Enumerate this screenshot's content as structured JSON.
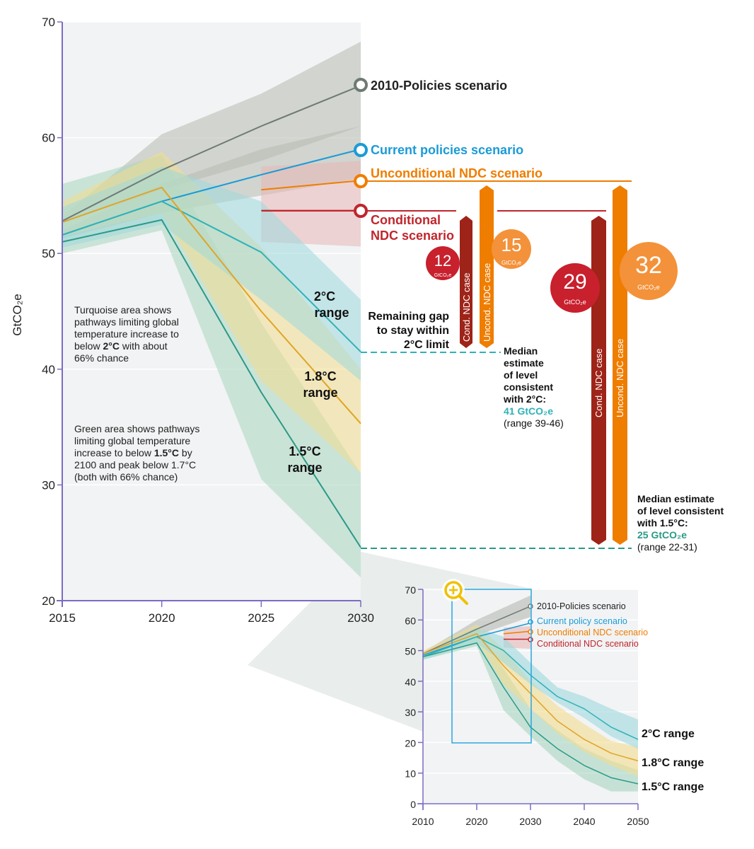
{
  "colors": {
    "policies2010": "#6f7a74",
    "current": "#1a9bd7",
    "uncond": "#ef7d00",
    "cond": "#c0262d",
    "cond_bar": "#9e2318",
    "t20": "#2fb2b8",
    "t18": "#e0a526",
    "t15": "#2a9a86",
    "band20": "#9fd9dc",
    "band18": "#f3dc8e",
    "band15": "#a9d6bf",
    "bandPol": "#b6b9b0",
    "bandCond": "#e8b7b6",
    "plot_bg": "#f1f3f4",
    "zoom_box": "#2aa6dd",
    "zoom_icon": "#f0c000"
  },
  "chart_data": [
    {
      "type": "line",
      "ylabel": "GtCO₂e",
      "xlim": [
        2015,
        2030
      ],
      "ylim": [
        20,
        70
      ],
      "xticks": [
        "2015",
        "2020",
        "2025",
        "2030"
      ],
      "yticks": [
        "20",
        "30",
        "40",
        "50",
        "60",
        "70"
      ],
      "series": [
        {
          "name": "2010-Policies scenario",
          "key": "policies2010",
          "x": [
            2015,
            2020,
            2025,
            2030
          ],
          "y": [
            52.8,
            57.2,
            61.0,
            64.5
          ],
          "band_low": [
            52.6,
            55.5,
            58.0,
            61.0
          ],
          "band_high": [
            53.2,
            60.3,
            63.8,
            68.3
          ],
          "band": "bandPol"
        },
        {
          "name": "Current policies scenario",
          "key": "current",
          "x": [
            2015,
            2020,
            2025,
            2030
          ],
          "y": [
            51.6,
            54.5,
            56.8,
            59.0
          ],
          "band_low": [
            51.3,
            53.5,
            55.0,
            56.5
          ],
          "band_high": [
            52.0,
            56.0,
            59.0,
            61.0
          ],
          "band": "bandPol"
        },
        {
          "name": "Unconditional NDC scenario",
          "key": "uncond",
          "x": [
            2025,
            2030
          ],
          "y": [
            55.5,
            56.3
          ],
          "band_low": [
            51.0,
            50.6
          ],
          "band_high": [
            57.5,
            58.0
          ],
          "band": "bandCond"
        },
        {
          "name": "Conditional NDC scenario",
          "key": "cond",
          "x": [
            2025,
            2030
          ],
          "y": [
            53.7,
            53.7
          ]
        },
        {
          "name": "2°C range",
          "key": "t20",
          "x": [
            2015,
            2020,
            2025,
            2030
          ],
          "y": [
            51.6,
            54.5,
            50.1,
            41.5
          ],
          "band_low": [
            50.5,
            52.5,
            46.0,
            39.0
          ],
          "band_high": [
            54.0,
            57.5,
            54.5,
            46.0
          ],
          "band": "band20"
        },
        {
          "name": "1.8°C range",
          "key": "t18",
          "x": [
            2015,
            2020,
            2025,
            2030
          ],
          "y": [
            52.7,
            55.7,
            45.0,
            35.3
          ],
          "band_low": [
            51.5,
            53.5,
            39.0,
            31.0
          ],
          "band_high": [
            54.5,
            58.8,
            50.5,
            40.0
          ],
          "band": "band18"
        },
        {
          "name": "1.5°C range",
          "key": "t15",
          "x": [
            2015,
            2020,
            2025,
            2030
          ],
          "y": [
            51.0,
            52.9,
            38.0,
            24.6
          ],
          "band_low": [
            50.0,
            52.0,
            30.5,
            22.0
          ],
          "band_high": [
            56.0,
            58.5,
            44.0,
            31.0
          ],
          "band": "band15"
        }
      ],
      "gaps": [
        {
          "target": "2°C",
          "case": "Cond. NDC case",
          "value": 12,
          "unit": "GtCO₂e"
        },
        {
          "target": "2°C",
          "case": "Uncond. NDC case",
          "value": 15,
          "unit": "GtCO₂e"
        },
        {
          "target": "1.5°C",
          "case": "Cond. NDC case",
          "value": 29,
          "unit": "GtCO₂e"
        },
        {
          "target": "1.5°C",
          "case": "Uncond. NDC case",
          "value": 32,
          "unit": "GtCO₂e"
        }
      ],
      "median_2c": 41,
      "median_15c": 25
    },
    {
      "type": "line",
      "title": "inset",
      "xlim": [
        2010,
        2050
      ],
      "ylim": [
        0,
        70
      ],
      "xticks": [
        "2010",
        "2020",
        "2030",
        "2040",
        "2050"
      ],
      "yticks": [
        "0",
        "10",
        "20",
        "30",
        "40",
        "50",
        "60",
        "70"
      ],
      "series": [
        {
          "name": "2010-Policies scenario",
          "key": "policies2010",
          "x": [
            2010,
            2020,
            2030
          ],
          "y": [
            49,
            57,
            64.5
          ],
          "band_low": [
            48.5,
            55,
            61
          ],
          "band_high": [
            49.5,
            60,
            68
          ],
          "band": "bandPol"
        },
        {
          "name": "Current policy scenario",
          "key": "current",
          "x": [
            2010,
            2020,
            2030
          ],
          "y": [
            48.5,
            54.5,
            59
          ]
        },
        {
          "name": "Unconditional NDC scenario",
          "key": "uncond",
          "x": [
            2025,
            2030
          ],
          "y": [
            55.5,
            56.3
          ],
          "band_low": [
            51,
            50.6
          ],
          "band_high": [
            57.5,
            58
          ],
          "band": "bandCond"
        },
        {
          "name": "Conditional NDC scenario",
          "key": "cond",
          "x": [
            2025,
            2030
          ],
          "y": [
            53.7,
            53.7
          ]
        },
        {
          "name": "2°C range",
          "key": "t20",
          "x": [
            2010,
            2020,
            2025,
            2030,
            2035,
            2040,
            2045,
            2050
          ],
          "y": [
            48,
            54.5,
            50,
            42,
            35,
            31,
            25,
            21
          ],
          "band_low": [
            47,
            52.5,
            46,
            39,
            33,
            28,
            22,
            18
          ],
          "band_high": [
            49,
            57.5,
            54.5,
            46,
            38,
            35,
            31,
            27.5
          ],
          "band": "band20"
        },
        {
          "name": "1.8°C range",
          "key": "t18",
          "x": [
            2010,
            2020,
            2025,
            2030,
            2035,
            2040,
            2045,
            2050
          ],
          "y": [
            49,
            55.5,
            45,
            36,
            27,
            21,
            16.5,
            14
          ],
          "band_low": [
            48,
            53.5,
            39,
            31,
            23,
            17,
            12.5,
            9
          ],
          "band_high": [
            50,
            58.5,
            50.5,
            40,
            32,
            26,
            20.5,
            18.5
          ],
          "band": "band18"
        },
        {
          "name": "1.5°C range",
          "key": "t15",
          "x": [
            2010,
            2020,
            2025,
            2030,
            2035,
            2040,
            2045,
            2050
          ],
          "y": [
            48,
            52.5,
            38,
            25,
            18,
            12.5,
            8.5,
            6.5
          ],
          "band_low": [
            47,
            51.5,
            30.5,
            22,
            14,
            8,
            4,
            4
          ],
          "band_high": [
            49.5,
            58,
            44,
            31,
            24,
            18,
            14,
            11
          ],
          "band": "band15"
        }
      ]
    }
  ],
  "main": {
    "ylabel": "GtCO₂e",
    "labels": {
      "policies2010": "2010-Policies scenario",
      "current": "Current policies scenario",
      "uncond": "Unconditional NDC scenario",
      "cond1": "Conditional",
      "cond2": "NDC scenario"
    },
    "ranges": {
      "t20": [
        "2°C",
        "range"
      ],
      "t18": [
        "1.8°C",
        "range"
      ],
      "t15": [
        "1.5°C",
        "range"
      ]
    },
    "note_turquoise": [
      "Turquoise area shows",
      "pathways limiting global",
      "temperature increase to",
      "below ",
      "2°C",
      " with about",
      "66% chance"
    ],
    "note_green": [
      "Green area shows pathways",
      "limiting global temperature",
      "increase to below ",
      "1.5°C",
      " by",
      "2100 and peak below 1.7°C",
      "(both with 66% chance)"
    ],
    "gap_text": [
      "Remaining gap",
      "to stay within",
      "2°C limit"
    ],
    "median2": [
      "Median",
      "estimate",
      "of level",
      "consistent",
      "with 2°C:",
      "41 GtCO₂e",
      "(range 39-46)"
    ],
    "median15": [
      "Median estimate",
      "of level consistent",
      "with 1.5°C:",
      "25 GtCO₂e",
      "(range 22-31)"
    ],
    "bars": {
      "cond": "Cond. NDC case",
      "uncond": "Uncond. NDC case"
    },
    "bubbles": [
      {
        "value": "12",
        "unit": "GtCO₂e"
      },
      {
        "value": "15",
        "unit": "GtCO₂e"
      },
      {
        "value": "29",
        "unit": "GtCO₂e"
      },
      {
        "value": "32",
        "unit": "GtCO₂e"
      }
    ]
  },
  "inset": {
    "labels": {
      "policies2010": "2010-Policies scenario",
      "current": "Current policy scenario",
      "uncond": "Unconditional NDC scenario",
      "cond": "Conditional NDC scenario"
    },
    "ranges": {
      "t20": "2°C range",
      "t18": "1.8°C range",
      "t15": "1.5°C range"
    },
    "zoom_icon": "zoom-in-icon"
  }
}
